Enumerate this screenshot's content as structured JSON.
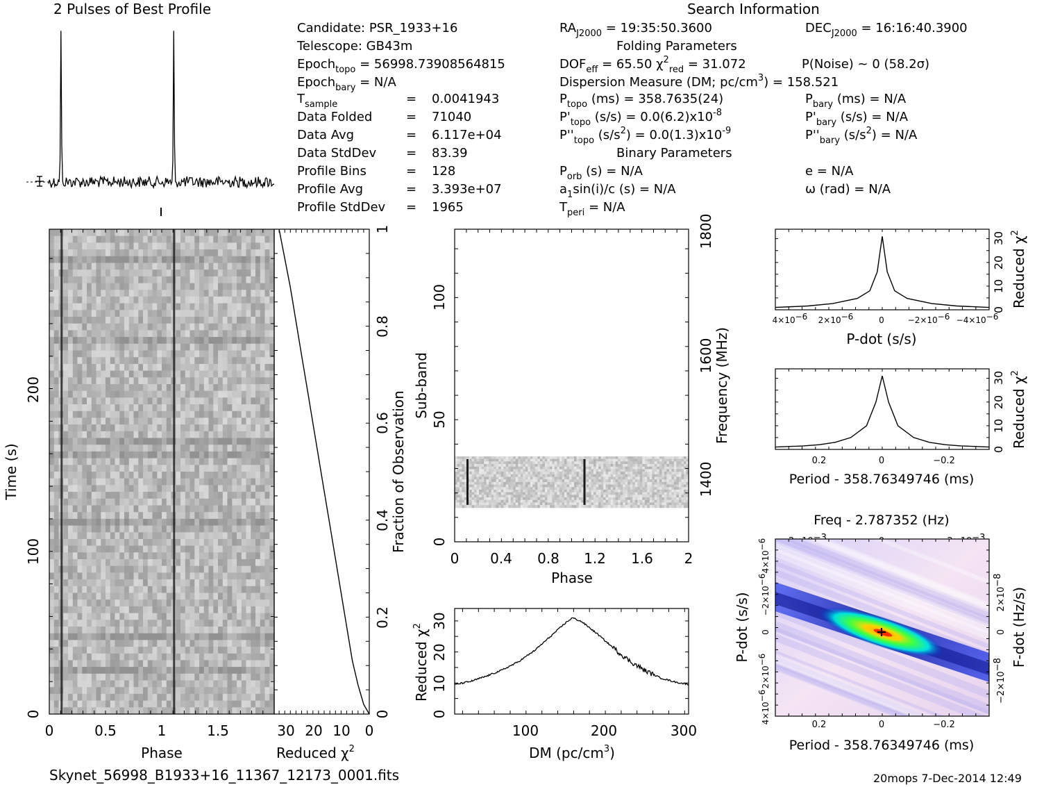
{
  "header": {
    "profile_title": "2 Pulses of Best Profile",
    "search_title": "Search Information",
    "folding_title": "Folding Parameters",
    "binary_title": "Binary Parameters"
  },
  "search_info": {
    "candidate": "PSR_1933+16",
    "telescope": "GB43m",
    "epoch_topo": "56998.73908564815",
    "epoch_bary": "N/A",
    "t_sample": "0.0041943",
    "data_folded": "71040",
    "data_avg": "6.117e+04",
    "data_stddev": "83.39",
    "profile_bins": "128",
    "profile_avg": "3.393e+07",
    "profile_stddev": "1965",
    "ra": "19:35:50.3600",
    "dec": "16:16:40.3900",
    "dof_eff": "65.50",
    "chi2_red": "31.072",
    "p_noise": "P(Noise) ~ 0",
    "sigma": "(58.2σ)",
    "dm_label": "Dispersion Measure (DM; pc/cm",
    "dm_value": "158.521",
    "p_topo": "358.7635(24)",
    "pdot_topo": "0.0(6.2)x10",
    "pdot_topo_exp": "-8",
    "pddot_topo": "0.0(1.3)x10",
    "pddot_topo_exp": "-9",
    "p_bary": "N/A",
    "pdot_bary": "N/A",
    "pddot_bary": "N/A",
    "p_orb": "N/A",
    "a1sini": "N/A",
    "t_peri": "N/A",
    "ecc": "N/A",
    "omega": "N/A"
  },
  "axes": {
    "time_label": "Time (s)",
    "phase_label": "Phase",
    "reduced_chi2_label": "Reduced χ",
    "fraction_label": "Fraction of Observation",
    "subband_label": "Sub-band",
    "frequency_label": "Frequency (MHz)",
    "dm_label": "DM (pc/cm",
    "pdot_label": "P-dot (s/s)",
    "period_label": "Period - 358.76349746 (ms)",
    "freq_label": "Freq - 2.787352 (Hz)",
    "fdot_label": "F-dot (Hz/s)"
  },
  "footer": {
    "filename": "Skynet_56998_B1933+16_11367_12173_0001.fits",
    "stamp": "20mops  7-Dec-2014 12:49"
  },
  "colors": {
    "ink": "#000000",
    "background": "#ffffff",
    "cmap_low": "#f0d8f0",
    "cmap_mid": "#2f3fe0",
    "cmap_high": "#ff3000"
  },
  "chart_data": [
    {
      "type": "line",
      "title": "2 Pulses of Best Profile",
      "x": {
        "range": [
          0,
          2
        ],
        "unit": "phase"
      },
      "series": [],
      "notes": "profile repeated twice, peaks near phase 0.11 and 1.11"
    },
    {
      "type": "heatmap",
      "xlabel": "Phase",
      "ylabel": "Time (s)",
      "xlim": [
        0,
        2
      ],
      "ylim": [
        0,
        298
      ],
      "xticks": [
        "0",
        "0.5",
        "1",
        "1.5"
      ],
      "yticks": [
        "0",
        "100",
        "200"
      ],
      "pulse_phase": [
        0.11,
        1.11
      ]
    },
    {
      "type": "line",
      "xlabel": "Reduced χ²",
      "ylabel": "Fraction of Observation",
      "xlim": [
        33,
        0
      ],
      "ylim": [
        0,
        1
      ],
      "xticks": [
        "30",
        "20",
        "10",
        "0"
      ],
      "yticks": [
        "0",
        "0.2",
        "0.4",
        "0.6",
        "0.8",
        "1"
      ],
      "x": [
        0,
        1,
        2,
        4,
        6,
        8,
        10,
        12,
        14,
        16,
        18,
        20,
        22,
        24,
        26,
        28,
        30,
        31,
        32
      ],
      "y": [
        0.0,
        0.01,
        0.02,
        0.06,
        0.11,
        0.18,
        0.25,
        0.32,
        0.39,
        0.46,
        0.53,
        0.6,
        0.67,
        0.74,
        0.81,
        0.88,
        0.94,
        0.97,
        1.0
      ]
    },
    {
      "type": "heatmap",
      "xlabel": "Phase",
      "ylabel": "Sub-band",
      "y2label": "Frequency (MHz)",
      "xlim": [
        0,
        2
      ],
      "ylim": [
        0,
        128
      ],
      "y2lim": [
        1350,
        1800
      ],
      "xticks": [
        "0",
        "0.4",
        "0.8",
        "1.2",
        "1.6",
        "2"
      ],
      "yticks": [
        "0",
        "50",
        "100"
      ],
      "y2ticks": [
        "1400",
        "1600",
        "1800"
      ],
      "occupied_subbands": [
        14,
        35
      ],
      "pulse_phase": [
        0.11,
        1.11
      ]
    },
    {
      "type": "line",
      "xlabel": "DM (pc/cm³)",
      "ylabel": "Reduced χ²",
      "xlim": [
        10,
        305
      ],
      "ylim": [
        0,
        34
      ],
      "xticks": [
        "100",
        "200",
        "300"
      ],
      "yticks": [
        "0",
        "10",
        "20",
        "30"
      ],
      "x": [
        10,
        30,
        50,
        70,
        90,
        110,
        130,
        150,
        158.5,
        170,
        190,
        210,
        230,
        250,
        270,
        290,
        305
      ],
      "y": [
        9.5,
        10.5,
        12.2,
        14.2,
        16.8,
        20.3,
        24.8,
        29.4,
        31.0,
        29.8,
        25.8,
        21.3,
        17.2,
        14.0,
        11.6,
        10.2,
        9.6
      ]
    },
    {
      "type": "line",
      "xlabel": "P-dot (s/s)",
      "ylabel": "Reduced χ²",
      "xlim": [
        4.3e-06,
        -4.3e-06
      ],
      "ylim": [
        0,
        34
      ],
      "xticks": [
        "4×10⁻⁶",
        "2×10⁻⁶",
        "0",
        "−2×10⁻⁶",
        "−4×10⁻⁶"
      ],
      "yticks": [
        "0",
        "10",
        "20",
        "30"
      ],
      "x": [
        4.3e-06,
        3e-06,
        2e-06,
        1e-06,
        5e-07,
        2e-07,
        0,
        -2e-07,
        -5e-07,
        -1e-06,
        -2e-06,
        -3e-06,
        -4.3e-06
      ],
      "y": [
        1.0,
        1.6,
        2.6,
        4.8,
        8.0,
        16.0,
        31.0,
        16.0,
        8.0,
        4.8,
        2.6,
        1.6,
        1.0
      ]
    },
    {
      "type": "line",
      "xlabel": "Period - 358.76349746 (ms)",
      "ylabel": "Reduced χ²",
      "xlim": [
        0.34,
        -0.34
      ],
      "ylim": [
        0,
        34
      ],
      "xticks": [
        "0.2",
        "0",
        "-0.2"
      ],
      "yticks": [
        "0",
        "10",
        "20",
        "30"
      ],
      "x": [
        0.34,
        0.25,
        0.2,
        0.15,
        0.1,
        0.05,
        0.02,
        0,
        -0.02,
        -0.05,
        -0.1,
        -0.15,
        -0.2,
        -0.25,
        -0.34
      ],
      "y": [
        1.0,
        1.5,
        2.0,
        3.0,
        5.0,
        10.0,
        20.0,
        31.0,
        20.0,
        10.0,
        5.0,
        3.0,
        2.0,
        1.5,
        1.0
      ]
    },
    {
      "type": "heatmap",
      "xlabel": "Period - 358.76349746 (ms)",
      "ylabel": "P-dot (s/s)",
      "x2label": "Freq - 2.787352 (Hz)",
      "y2label": "F-dot (Hz/s)",
      "xlim": [
        0.34,
        -0.34
      ],
      "ylim": [
        4.3e-06,
        -4.3e-06
      ],
      "xticks": [
        "0.2",
        "0",
        "-0.2"
      ],
      "yticks": [
        "4×10⁻⁶",
        "2×10⁻⁶",
        "0",
        "−2×10⁻⁶",
        "−4×10⁻⁶"
      ],
      "x2ticks": [
        "−2×10⁻³",
        "0",
        "2×10⁻³"
      ],
      "y2ticks": [
        "−2×10⁻⁸",
        "0",
        "2×10⁻⁸"
      ],
      "peak": [
        0,
        0
      ]
    }
  ]
}
